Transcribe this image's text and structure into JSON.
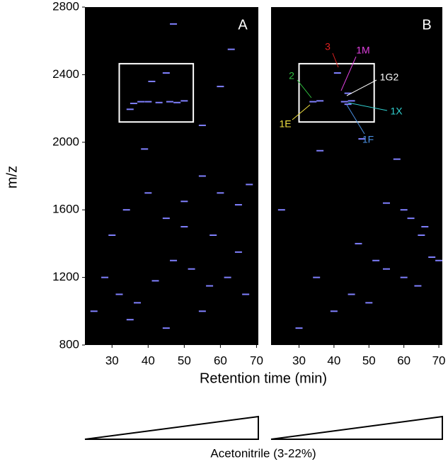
{
  "chart_data": [
    {
      "type": "scatter",
      "panel_label": "A",
      "x_label": "Retention time (min)",
      "y_label": "m/z",
      "background": "#000000",
      "color": "#8080ff",
      "box_color": "#ffffff",
      "xlim": [
        22.5,
        70.5
      ],
      "ylim": [
        800,
        2800
      ],
      "xticks": [
        30,
        40,
        50,
        60,
        70
      ],
      "yticks": [
        800,
        1200,
        1600,
        2000,
        2400,
        2800
      ],
      "box": {
        "xlim": [
          32,
          52.5
        ],
        "ylim": [
          2120,
          2465
        ]
      },
      "x": [
        36,
        38,
        40,
        43,
        46,
        48,
        50,
        35,
        41,
        45,
        47,
        39,
        55,
        60,
        63,
        30,
        34,
        40,
        45,
        50,
        55,
        60,
        65,
        68,
        28,
        32,
        37,
        42,
        47,
        52,
        57,
        62,
        67,
        35,
        45,
        55,
        65,
        25,
        50,
        58
      ],
      "y": [
        2230,
        2240,
        2240,
        2235,
        2240,
        2235,
        2245,
        2195,
        2360,
        2410,
        2700,
        1960,
        2100,
        2330,
        2550,
        1450,
        1600,
        1700,
        1550,
        1500,
        1800,
        1700,
        1630,
        1750,
        1200,
        1100,
        1050,
        1180,
        1300,
        1250,
        1150,
        1200,
        1100,
        950,
        900,
        1000,
        1350,
        1000,
        1650,
        1450
      ]
    },
    {
      "type": "scatter",
      "panel_label": "B",
      "background": "#000000",
      "color": "#8080ff",
      "box_color": "#ffffff",
      "xlim": [
        22,
        71
      ],
      "ylim": [
        800,
        2800
      ],
      "xticks": [
        30,
        40,
        50,
        60,
        70
      ],
      "box": {
        "xlim": [
          30,
          51.5
        ],
        "ylim": [
          2120,
          2465
        ]
      },
      "x": [
        34,
        36,
        43,
        45,
        44,
        44,
        41,
        36,
        48,
        55,
        60,
        62,
        66,
        68,
        52,
        55,
        60,
        64,
        45,
        40,
        30,
        50,
        35,
        25,
        58,
        65,
        70,
        47
      ],
      "y": [
        2240,
        2245,
        2240,
        2245,
        2290,
        2225,
        2410,
        1950,
        2020,
        1640,
        1600,
        1550,
        1500,
        1320,
        1300,
        1250,
        1200,
        1150,
        1100,
        1000,
        900,
        1050,
        1200,
        1600,
        1900,
        1450,
        1300,
        1400
      ],
      "annotations": [
        {
          "text": "3",
          "color": "#e02020"
        },
        {
          "text": "1M",
          "color": "#e040e0"
        },
        {
          "text": "1G2",
          "color": "#ffffff"
        },
        {
          "text": "2",
          "color": "#30c040"
        },
        {
          "text": "1E",
          "color": "#f0e040"
        },
        {
          "text": "1X",
          "color": "#30d0d0"
        },
        {
          "text": "1F",
          "color": "#4a90e2"
        }
      ]
    }
  ],
  "footer": {
    "label": "Acetonitrile (3-22%)"
  }
}
